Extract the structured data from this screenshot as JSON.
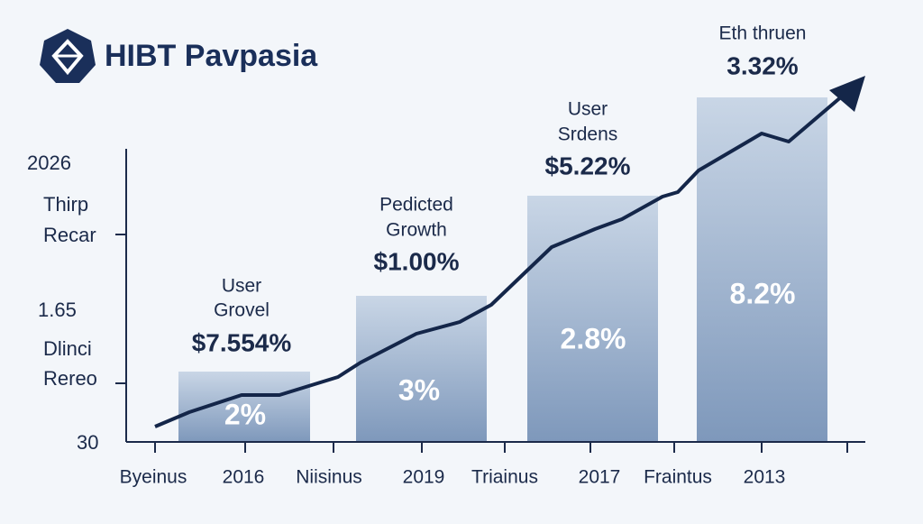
{
  "header": {
    "title": "HIBT Pavpasia"
  },
  "y_axis": {
    "labels": [
      "2026",
      "Thirp",
      "Recar",
      "1.65",
      "Dlinci",
      "Rereo",
      "30"
    ]
  },
  "x_axis": {
    "labels": [
      "Byeinus",
      "2016",
      "Niisinus",
      "2019",
      "Triainus",
      "2017",
      "Fraintus",
      "2013"
    ]
  },
  "bars": [
    {
      "inner_label": "2%",
      "annotation": [
        "User",
        "Grovel",
        "$7.554%"
      ]
    },
    {
      "inner_label": "3%",
      "annotation": [
        "Pedicted",
        "Growth",
        "$1.00%"
      ]
    },
    {
      "inner_label": "2.8%",
      "annotation": [
        "User",
        "Srdens",
        "$5.22%"
      ]
    },
    {
      "inner_label": "8.2%",
      "annotation": [
        "Eth thruen",
        "3.32%"
      ]
    }
  ]
}
